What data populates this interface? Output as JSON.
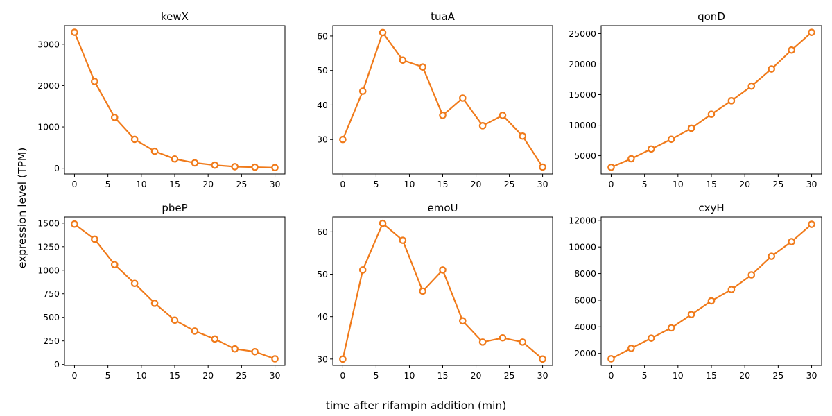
{
  "figure": {
    "xlabel": "time after rifampin addition (min)",
    "ylabel": "expression level (TPM)",
    "line_color": "#f07a1a"
  },
  "chart_data": [
    {
      "type": "line",
      "title": "kewX",
      "x": [
        0,
        3,
        6,
        9,
        12,
        15,
        18,
        21,
        24,
        27,
        30
      ],
      "values": [
        3290,
        2100,
        1230,
        700,
        410,
        225,
        130,
        75,
        38,
        25,
        15
      ],
      "xlim": [
        -1.5,
        31.5
      ],
      "ylim": [
        -140,
        3450
      ],
      "xticks": [
        0,
        5,
        10,
        15,
        20,
        25,
        30
      ],
      "yticks": [
        0,
        1000,
        2000,
        3000
      ]
    },
    {
      "type": "line",
      "title": "tuaA",
      "x": [
        0,
        3,
        6,
        9,
        12,
        15,
        18,
        21,
        24,
        27,
        30
      ],
      "values": [
        30,
        44,
        61,
        53,
        51,
        37,
        42,
        34,
        37,
        31,
        22
      ],
      "xlim": [
        -1.5,
        31.5
      ],
      "ylim": [
        20.0,
        63.0
      ],
      "xticks": [
        0,
        5,
        10,
        15,
        20,
        25,
        30
      ],
      "yticks": [
        30,
        40,
        50,
        60
      ]
    },
    {
      "type": "line",
      "title": "qonD",
      "x": [
        0,
        3,
        6,
        9,
        12,
        15,
        18,
        21,
        24,
        27,
        30
      ],
      "values": [
        3100,
        4500,
        6100,
        7700,
        9500,
        11800,
        14000,
        16400,
        19200,
        22300,
        25200
      ],
      "xlim": [
        -1.5,
        31.5
      ],
      "ylim": [
        2000,
        26300
      ],
      "xticks": [
        0,
        5,
        10,
        15,
        20,
        25,
        30
      ],
      "yticks": [
        5000,
        10000,
        15000,
        20000,
        25000
      ]
    },
    {
      "type": "line",
      "title": "pbeP",
      "x": [
        0,
        3,
        6,
        9,
        12,
        15,
        18,
        21,
        24,
        27,
        30
      ],
      "values": [
        1490,
        1330,
        1060,
        860,
        650,
        470,
        355,
        270,
        165,
        135,
        60
      ],
      "xlim": [
        -1.5,
        31.5
      ],
      "ylim": [
        -10,
        1565
      ],
      "xticks": [
        0,
        5,
        10,
        15,
        20,
        25,
        30
      ],
      "yticks": [
        0,
        250,
        500,
        750,
        1000,
        1250,
        1500
      ]
    },
    {
      "type": "line",
      "title": "emoU",
      "x": [
        0,
        3,
        6,
        9,
        12,
        15,
        18,
        21,
        24,
        27,
        30
      ],
      "values": [
        30,
        51,
        62,
        58,
        46,
        51,
        39,
        34,
        35,
        34,
        30
      ],
      "xlim": [
        -1.5,
        31.5
      ],
      "ylim": [
        28.5,
        63.5
      ],
      "xticks": [
        0,
        5,
        10,
        15,
        20,
        25,
        30
      ],
      "yticks": [
        30,
        40,
        50,
        60
      ]
    },
    {
      "type": "line",
      "title": "cxyH",
      "x": [
        0,
        3,
        6,
        9,
        12,
        15,
        18,
        21,
        24,
        27,
        30
      ],
      "values": [
        1600,
        2380,
        3150,
        3920,
        4920,
        5950,
        6800,
        7900,
        9300,
        10400,
        11700
      ],
      "xlim": [
        -1.5,
        31.5
      ],
      "ylim": [
        1100,
        12250
      ],
      "xticks": [
        0,
        5,
        10,
        15,
        20,
        25,
        30
      ],
      "yticks": [
        2000,
        4000,
        6000,
        8000,
        10000,
        12000
      ]
    }
  ]
}
